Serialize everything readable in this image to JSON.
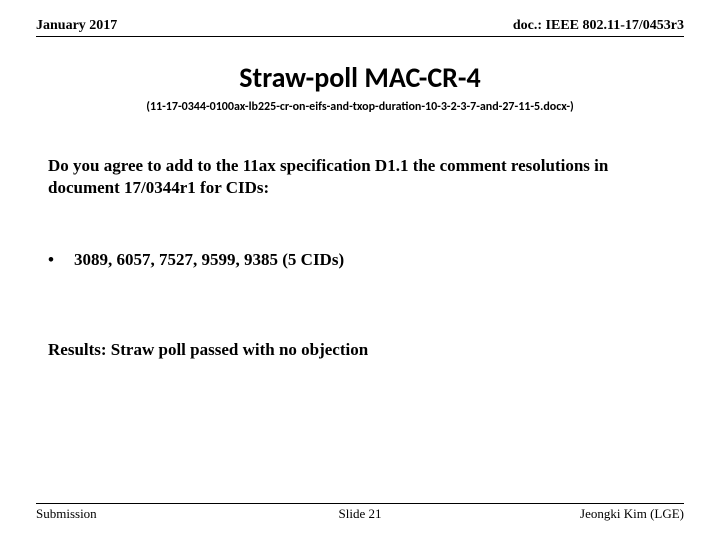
{
  "header": {
    "date": "January 2017",
    "doc": "doc.: IEEE 802.11-17/0453r3"
  },
  "title": "Straw-poll MAC-CR-4",
  "subtitle": "(11-17-0344-0100ax-lb225-cr-on-eifs-and-txop-duration-10-3-2-3-7-and-27-11-5.docx-)",
  "question": "Do you agree to add to the 11ax specification D1.1 the comment resolutions in document 17/0344r1 for CIDs:",
  "bullet": {
    "mark": "•",
    "text": "3089, 6057, 7527, 9599, 9385 (5 CIDs)"
  },
  "results": "Results: Straw poll passed with no objection",
  "footer": {
    "left": "Submission",
    "center": "Slide 21",
    "right": "Jeongki Kim (LGE)"
  }
}
